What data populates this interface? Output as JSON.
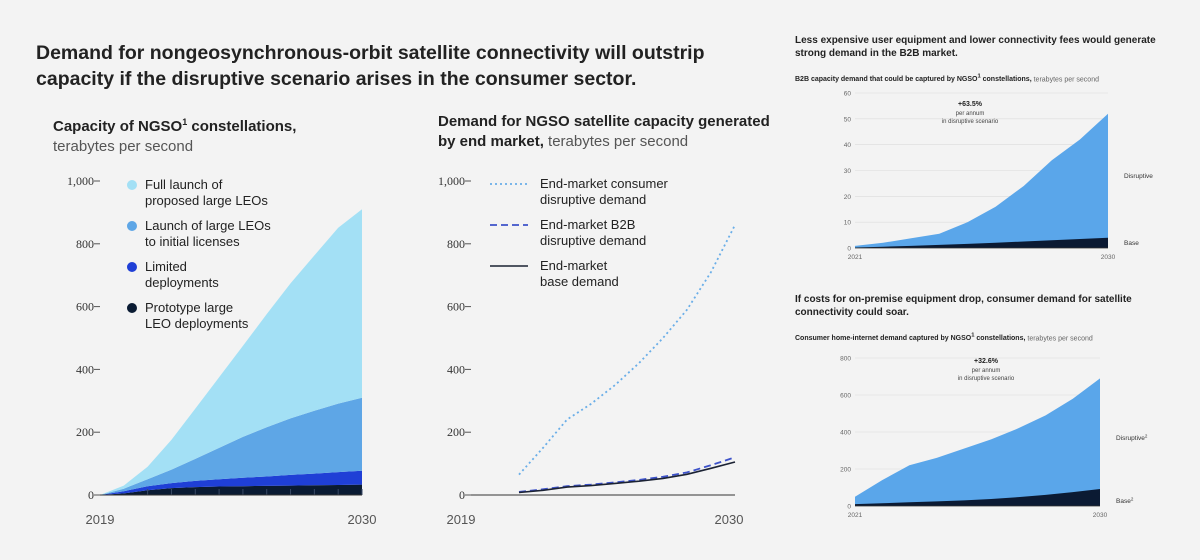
{
  "title": "Demand for nongeosynchronous-orbit satellite connectivity will outstrip capacity if the disruptive scenario arises in the consumer sector.",
  "colors": {
    "light_blue": "#a3e0f5",
    "mid_blue": "#5ea6e6",
    "royal_blue": "#1f3fd6",
    "navy": "#0a1b33",
    "consumer_line": "#6aaee8",
    "b2b_line": "#3d52c9",
    "base_line": "#1b2233",
    "disruptive_area": "#5aa6ea",
    "base_area": "#0b1a33"
  },
  "chart_data": [
    {
      "type": "area",
      "title": "Capacity of NGSO",
      "title_sup": "1",
      "title_suffix": " constellations,",
      "unit": "terabytes per second",
      "x": [
        2019,
        2020,
        2021,
        2022,
        2023,
        2024,
        2025,
        2026,
        2027,
        2028,
        2029,
        2030
      ],
      "ylim": [
        0,
        1000
      ],
      "yticks": [
        "0",
        "200",
        "400",
        "600",
        "800",
        "1,000"
      ],
      "xtick_labels": [
        "2019",
        "2030"
      ],
      "stacked": true,
      "legend_position": "top-left",
      "series": [
        {
          "name": "Prototype large LEO deployments",
          "values": [
            0,
            5,
            15,
            22,
            25,
            27,
            28,
            29,
            30,
            31,
            32,
            33
          ]
        },
        {
          "name": "Limited deployments",
          "values": [
            0,
            7,
            13,
            16,
            20,
            23,
            27,
            30,
            34,
            37,
            41,
            44
          ]
        },
        {
          "name": "Launch of large LEOs to initial licenses",
          "values": [
            0,
            8,
            22,
            43,
            70,
            100,
            130,
            157,
            180,
            200,
            218,
            233
          ]
        },
        {
          "name": "Full launch of proposed large LEOs",
          "values": [
            0,
            10,
            40,
            95,
            160,
            225,
            290,
            360,
            430,
            495,
            560,
            600
          ]
        }
      ]
    },
    {
      "type": "line",
      "title": "Demand for NGSO satellite capacity generated by end market,",
      "unit": "terabytes per second",
      "x": [
        2019,
        2020,
        2021,
        2022,
        2023,
        2024,
        2025,
        2026,
        2027,
        2028,
        2029,
        2030
      ],
      "ylim": [
        0,
        1000
      ],
      "yticks": [
        "0",
        "200",
        "400",
        "600",
        "800",
        "1,000"
      ],
      "xtick_labels": [
        "2019",
        "2030"
      ],
      "legend_position": "top-left",
      "series": [
        {
          "name": "End-market consumer disruptive demand",
          "style": "dotted",
          "x": [
            2021,
            2022,
            2023,
            2024,
            2025,
            2026,
            2027,
            2028,
            2029,
            2030
          ],
          "values": [
            65,
            150,
            240,
            290,
            350,
            420,
            500,
            590,
            710,
            860
          ]
        },
        {
          "name": "End-market B2B disruptive demand",
          "style": "dashed",
          "x": [
            2021,
            2022,
            2023,
            2024,
            2025,
            2026,
            2027,
            2028,
            2029,
            2030
          ],
          "values": [
            10,
            18,
            28,
            33,
            40,
            48,
            58,
            72,
            95,
            120
          ]
        },
        {
          "name": "End-market base demand",
          "style": "solid",
          "x": [
            2021,
            2022,
            2023,
            2024,
            2025,
            2026,
            2027,
            2028,
            2029,
            2030
          ],
          "values": [
            8,
            15,
            25,
            30,
            37,
            44,
            53,
            66,
            85,
            105
          ]
        }
      ]
    },
    {
      "type": "area",
      "heading": "Less expensive user equipment and lower connectivity fees would generate strong demand in the B2B market.",
      "title": "B2B capacity demand that could be captured by NGSO",
      "title_sup": "1",
      "title_suffix": " constellations,",
      "unit": "terabytes per second",
      "x": [
        2021,
        2022,
        2023,
        2024,
        2025,
        2026,
        2027,
        2028,
        2029,
        2030
      ],
      "ylim": [
        0,
        60
      ],
      "yticks": [
        "0",
        "10",
        "20",
        "30",
        "40",
        "50",
        "60"
      ],
      "xtick_labels": [
        "2021",
        "2030"
      ],
      "annotation": {
        "value": "+63.5%",
        "line1": "per annum",
        "line2": "in disruptive scenario"
      },
      "series": [
        {
          "name": "Base",
          "values": [
            0.2,
            0.5,
            0.8,
            1.2,
            1.6,
            2.0,
            2.5,
            3.0,
            3.5,
            4.0
          ]
        },
        {
          "name": "Disruptive",
          "values": [
            0.8,
            2.0,
            3.8,
            5.5,
            10,
            16,
            24,
            34,
            42,
            52
          ]
        }
      ]
    },
    {
      "type": "area",
      "heading": "If costs for on-premise equipment drop, consumer demand for satellite connectivity could soar.",
      "title": "Consumer home-internet demand captured by NGSO",
      "title_sup": "1",
      "title_suffix": " constellations,",
      "unit": "terabytes per second",
      "x": [
        2021,
        2022,
        2023,
        2024,
        2025,
        2026,
        2027,
        2028,
        2029,
        2030
      ],
      "ylim": [
        0,
        800
      ],
      "yticks": [
        "0",
        "200",
        "400",
        "600",
        "800"
      ],
      "xtick_labels": [
        "2021",
        "2030"
      ],
      "annotation": {
        "value": "+32.6%",
        "line1": "per annum",
        "line2": "in disruptive scenario"
      },
      "series": [
        {
          "name": "Base",
          "name_sup": "2",
          "values": [
            10,
            15,
            20,
            25,
            30,
            38,
            48,
            60,
            75,
            92
          ]
        },
        {
          "name": "Disruptive",
          "name_sup": "2",
          "values": [
            50,
            140,
            220,
            260,
            310,
            360,
            420,
            490,
            580,
            690
          ]
        }
      ]
    }
  ]
}
